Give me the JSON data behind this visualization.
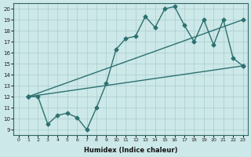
{
  "background_color": "#cce8e8",
  "grid_color": "#aacccc",
  "line_color": "#2d7070",
  "xlabel": "Humidex (Indice chaleur)",
  "xlim": [
    -0.5,
    23.5
  ],
  "ylim": [
    8.5,
    20.5
  ],
  "xticks": [
    0,
    1,
    2,
    3,
    4,
    5,
    6,
    7,
    8,
    9,
    10,
    11,
    12,
    13,
    14,
    15,
    16,
    17,
    18,
    19,
    20,
    21,
    22,
    23
  ],
  "yticks": [
    9,
    10,
    11,
    12,
    13,
    14,
    15,
    16,
    17,
    18,
    19,
    20
  ],
  "line1_x": [
    1,
    23
  ],
  "line1_y": [
    12,
    19.0
  ],
  "line2_x": [
    1,
    23
  ],
  "line2_y": [
    12,
    14.8
  ],
  "line3_x": [
    1,
    2,
    3,
    4,
    5,
    6,
    7,
    8,
    9,
    10,
    11,
    12,
    13,
    14,
    15,
    16,
    17,
    18,
    19,
    20,
    21,
    22,
    23
  ],
  "line3_y": [
    12,
    12,
    9.5,
    10.3,
    10.5,
    10.1,
    9.0,
    11.0,
    13.2,
    16.3,
    17.3,
    17.5,
    19.3,
    18.3,
    20.0,
    20.2,
    18.5,
    17.0,
    19.0,
    16.7,
    19.0,
    15.5,
    14.8
  ],
  "marker": "D",
  "markersize": 2.5,
  "linewidth": 1.0
}
